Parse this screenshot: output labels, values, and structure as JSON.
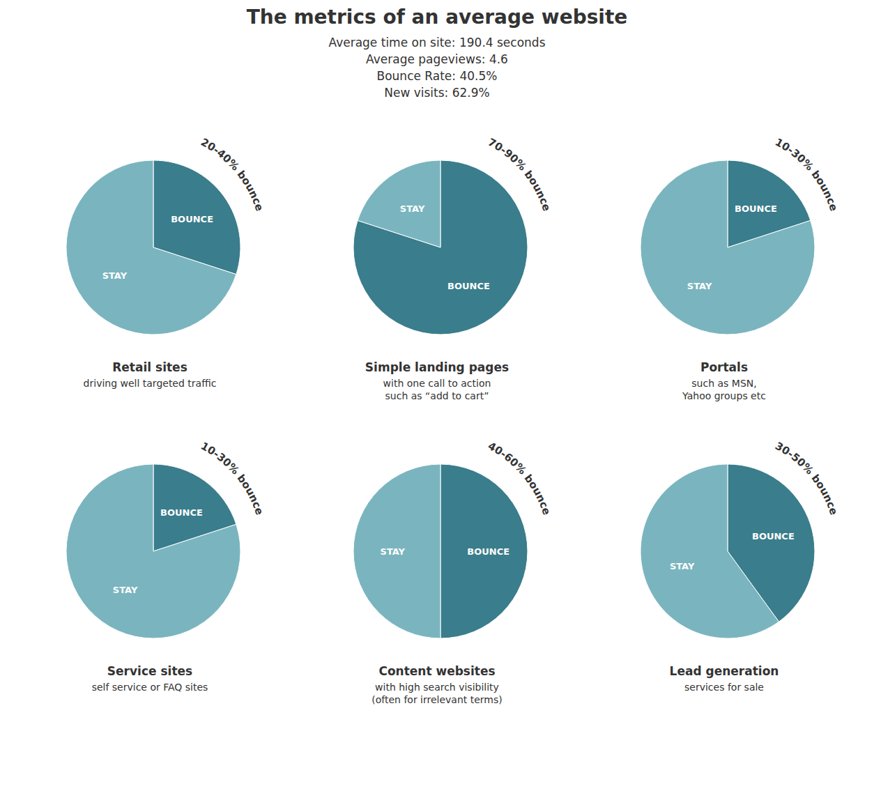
{
  "title": "The metrics of an average website",
  "subtitle": [
    "Average time on site: 190.4 seconds",
    "Average pageviews: 4.6",
    "Bounce Rate: 40.5%",
    "New visits: 62.9%"
  ],
  "chart_data": [
    {
      "type": "pie",
      "title": "Retail sites",
      "subtitle": "driving well targeted traffic",
      "annotation": "20-40% bounce",
      "categories": [
        "BOUNCE",
        "STAY"
      ],
      "values": [
        30,
        70
      ],
      "colors": [
        "#3a7d8c",
        "#7ab5bf"
      ]
    },
    {
      "type": "pie",
      "title": "Simple landing pages",
      "subtitle": "with one call to action\nsuch as “add to cart”",
      "annotation": "70-90% bounce",
      "categories": [
        "BOUNCE",
        "STAY"
      ],
      "values": [
        80,
        20
      ],
      "colors": [
        "#3a7d8c",
        "#7ab5bf"
      ]
    },
    {
      "type": "pie",
      "title": "Portals",
      "subtitle": "such as MSN,\nYahoo groups etc",
      "annotation": "10-30% bounce",
      "categories": [
        "BOUNCE",
        "STAY"
      ],
      "values": [
        20,
        80
      ],
      "colors": [
        "#3a7d8c",
        "#7ab5bf"
      ]
    },
    {
      "type": "pie",
      "title": "Service sites",
      "subtitle": "self service or FAQ sites",
      "annotation": "10-30% bounce",
      "categories": [
        "BOUNCE",
        "STAY"
      ],
      "values": [
        20,
        80
      ],
      "colors": [
        "#3a7d8c",
        "#7ab5bf"
      ]
    },
    {
      "type": "pie",
      "title": "Content websites",
      "subtitle": "with high search visibility\n(often for irrelevant terms)",
      "annotation": "40-60% bounce",
      "categories": [
        "BOUNCE",
        "STAY"
      ],
      "values": [
        50,
        50
      ],
      "colors": [
        "#3a7d8c",
        "#7ab5bf"
      ]
    },
    {
      "type": "pie",
      "title": "Lead generation",
      "subtitle": "services for sale",
      "annotation": "30-50% bounce",
      "categories": [
        "BOUNCE",
        "STAY"
      ],
      "values": [
        40,
        60
      ],
      "colors": [
        "#3a7d8c",
        "#7ab5bf"
      ]
    }
  ]
}
